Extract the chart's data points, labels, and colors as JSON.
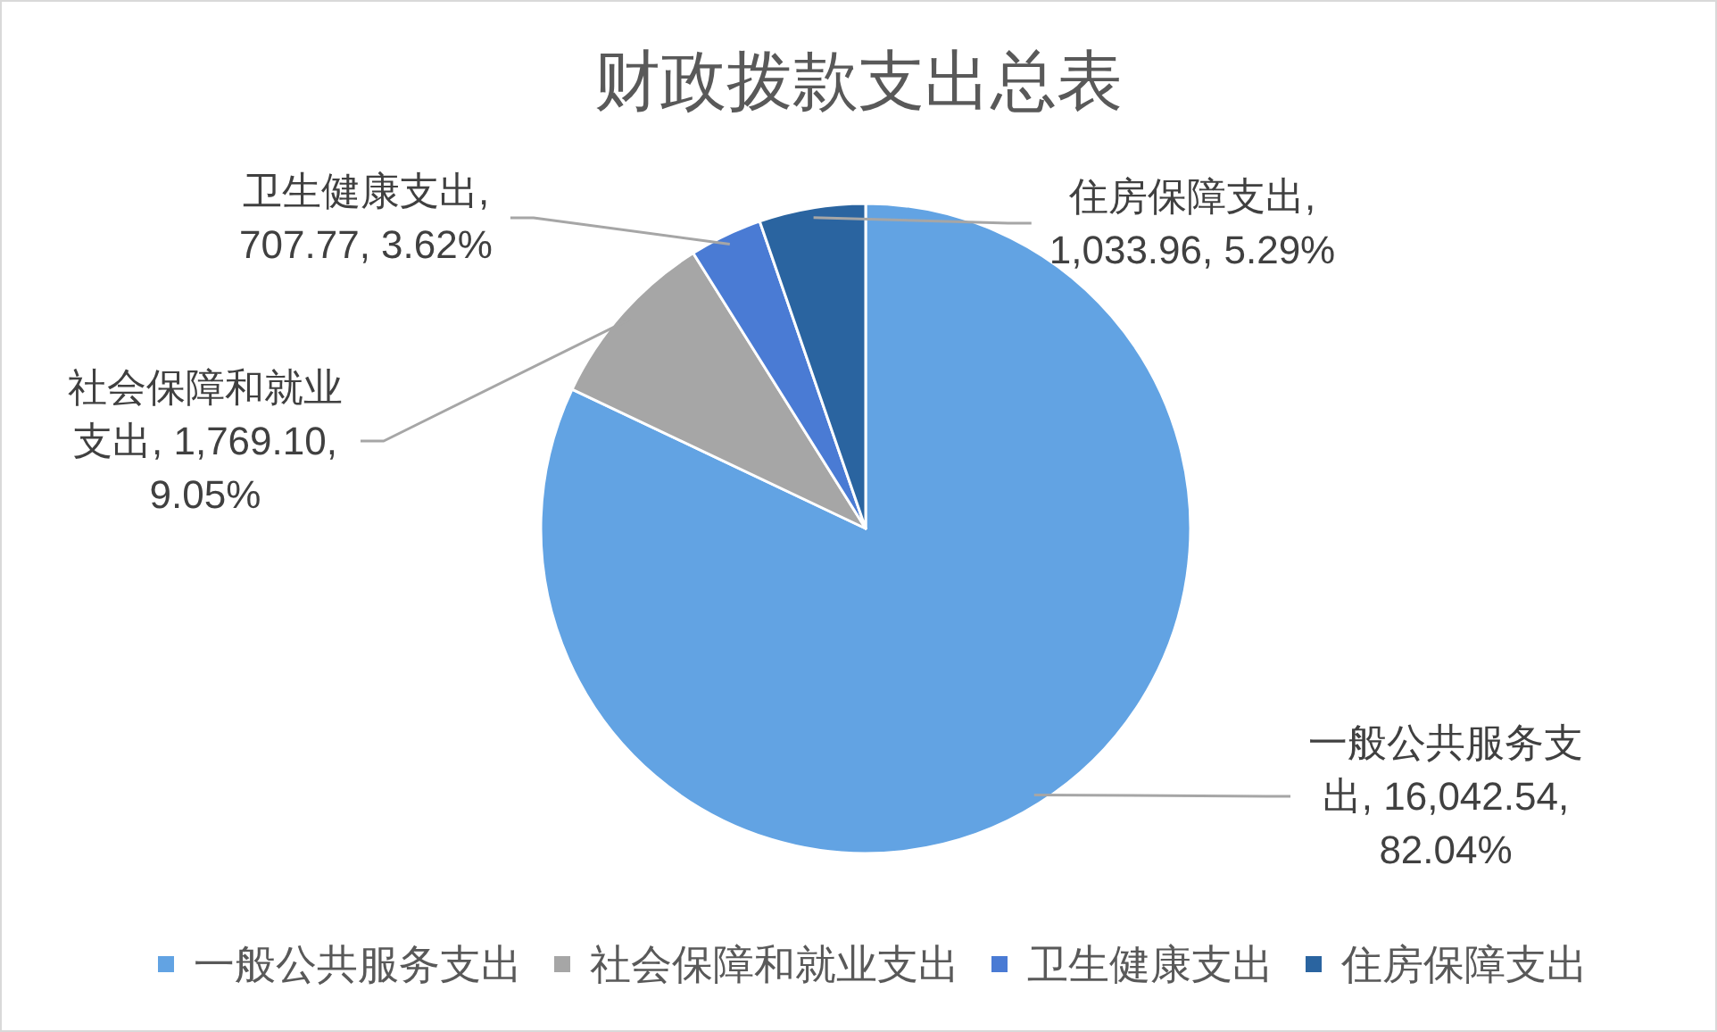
{
  "chart_data": {
    "type": "pie",
    "title": "财政拨款支出总表",
    "categories": [
      "一般公共服务支出",
      "社会保障和就业支出",
      "卫生健康支出",
      "住房保障支出"
    ],
    "values": [
      16042.54,
      1769.1,
      707.77,
      1033.96
    ],
    "colors": [
      "#62a3e3",
      "#a6a6a6",
      "#4a7bd4",
      "#2a64a0"
    ],
    "value_labels": [
      "一般公共服务支出, 16,042.54, 82.04%",
      "社会保障和就业支出, 1,769.10, 9.05%",
      "卫生健康支出, 707.77, 3.62%",
      "住房保障支出, 1,033.96, 5.29%"
    ],
    "legend": "bottom"
  }
}
